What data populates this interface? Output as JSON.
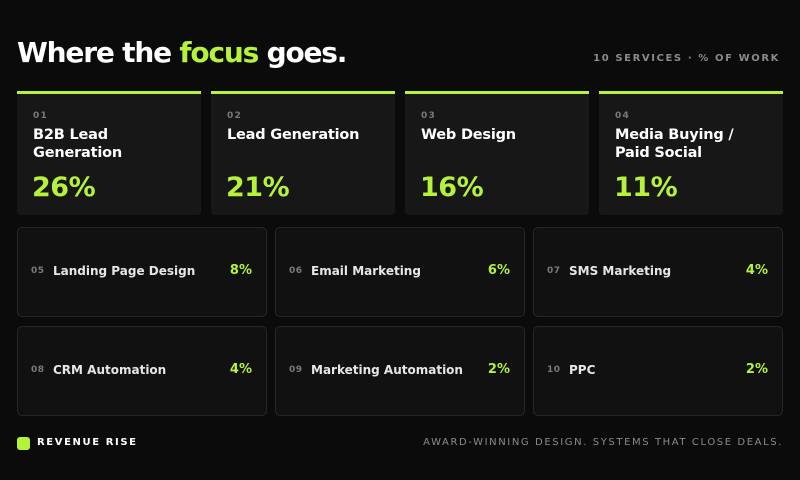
{
  "colors": {
    "background": "#0b0b0b",
    "accent": "#b5f23a",
    "card": "#171717",
    "muted": "#8a8a8a"
  },
  "header": {
    "title_before": "Where the ",
    "title_accent": "focus",
    "title_after": " goes.",
    "meta": "10 SERVICES · % OF WORK"
  },
  "featured": [
    {
      "num": "01",
      "name": "B2B Lead Generation",
      "pct": "26%"
    },
    {
      "num": "02",
      "name": "Lead Generation",
      "pct": "21%"
    },
    {
      "num": "03",
      "name": "Web Design",
      "pct": "16%"
    },
    {
      "num": "04",
      "name": "Media Buying / Paid Social",
      "pct": "11%"
    }
  ],
  "services": [
    {
      "num": "05",
      "name": "Landing Page Design",
      "pct": "8%"
    },
    {
      "num": "06",
      "name": "Email Marketing",
      "pct": "6%"
    },
    {
      "num": "07",
      "name": "SMS Marketing",
      "pct": "4%"
    },
    {
      "num": "08",
      "name": "CRM Automation",
      "pct": "4%"
    },
    {
      "num": "09",
      "name": "Marketing Automation",
      "pct": "2%"
    },
    {
      "num": "10",
      "name": "PPC",
      "pct": "2%"
    }
  ],
  "footer": {
    "brand": "REVENUE RISE",
    "tagline": "AWARD-WINNING DESIGN. SYSTEMS THAT CLOSE DEALS."
  }
}
